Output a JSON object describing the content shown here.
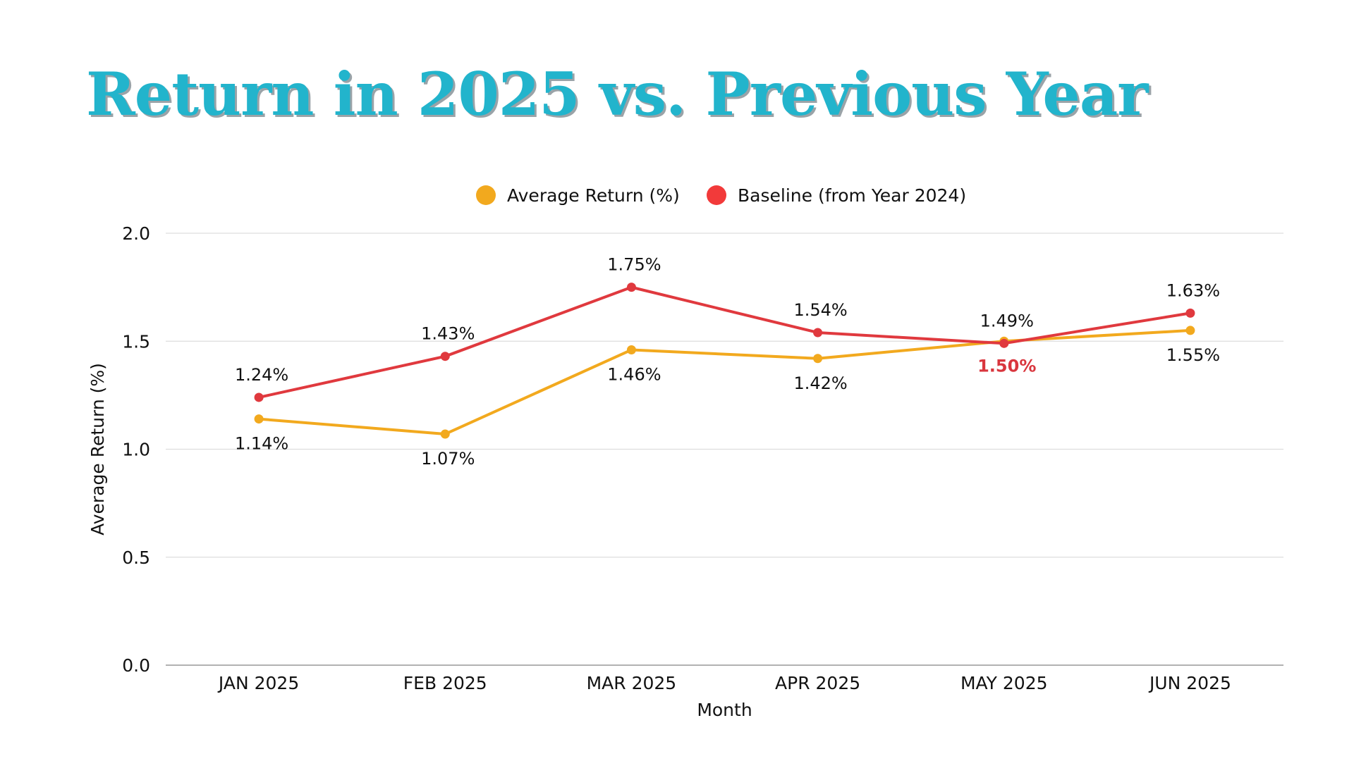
{
  "chart_data": {
    "type": "line",
    "title": "Return in 2025 vs. Previous Year",
    "xlabel": "Month",
    "ylabel": "Average Return (%)",
    "categories": [
      "JAN 2025",
      "FEB 2025",
      "MAR 2025",
      "APR 2025",
      "MAY 2025",
      "JUN 2025"
    ],
    "ylim": [
      0,
      2.0
    ],
    "yticks": [
      0.0,
      0.5,
      1.0,
      1.5,
      2.0
    ],
    "ytick_labels": [
      "0.0",
      "0.5",
      "1.0",
      "1.5",
      "2.0"
    ],
    "grid": true,
    "legend": "top-center",
    "series": [
      {
        "name": "Average Return (%)",
        "color": "#f2a91e",
        "values": [
          1.14,
          1.07,
          1.46,
          1.42,
          1.5,
          1.55
        ],
        "labels": [
          "1.14%",
          "1.07%",
          "1.46%",
          "1.42%",
          "1.50%",
          "1.55%"
        ],
        "label_position": [
          "below",
          "below",
          "below",
          "below",
          "below",
          "below"
        ],
        "label_colors": [
          "#111111",
          "#111111",
          "#111111",
          "#111111",
          "#d9363e",
          "#111111"
        ]
      },
      {
        "name": "Baseline (from Year 2024)",
        "color": "#e0393e",
        "legend_color": "#f23a3a",
        "values": [
          1.24,
          1.43,
          1.75,
          1.54,
          1.49,
          1.63
        ],
        "labels": [
          "1.24%",
          "1.43%",
          "1.75%",
          "1.54%",
          "1.49%",
          "1.63%"
        ],
        "label_position": [
          "above",
          "above",
          "above",
          "above",
          "above",
          "above"
        ],
        "label_colors": [
          "#111111",
          "#111111",
          "#111111",
          "#111111",
          "#111111",
          "#111111"
        ]
      }
    ],
    "gridline_color": "#dddddd",
    "baseline_color": "#999999"
  }
}
